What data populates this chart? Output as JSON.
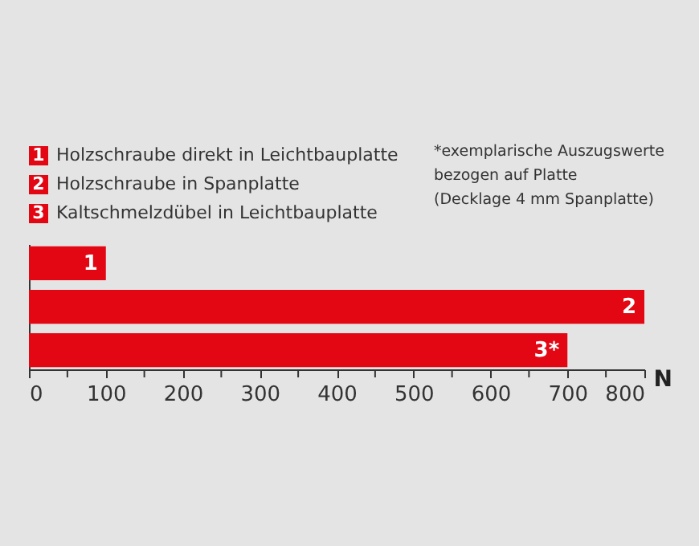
{
  "chart_data": {
    "type": "bar",
    "orientation": "horizontal",
    "categories": [
      "1",
      "2",
      "3*"
    ],
    "values": [
      100,
      800,
      700
    ],
    "color": "#e30613",
    "xlabel": "N",
    "xlim": [
      0,
      800
    ],
    "xticks": [
      0,
      {
        "value": 50,
        "label": null
      },
      100,
      {
        "value": 150,
        "label": null
      },
      200,
      {
        "value": 250,
        "label": null
      },
      300,
      {
        "value": 350,
        "label": null
      },
      400,
      {
        "value": 450,
        "label": null
      },
      500,
      {
        "value": 550,
        "label": null
      },
      600,
      {
        "value": 650,
        "label": null
      },
      700,
      {
        "value": 750,
        "label": null
      },
      800
    ],
    "grid": false,
    "annotations": [
      "1 Holzschraube direkt in Leichtbauplatte",
      "2 Holzschraube in Spanplatte",
      "3 Kaltschmelzdübel in Leichtbauplatte",
      "*exemplarische Auszugswerte\nbezogen auf Platte\n(Decklage 4 mm Spanplatte)"
    ]
  }
}
